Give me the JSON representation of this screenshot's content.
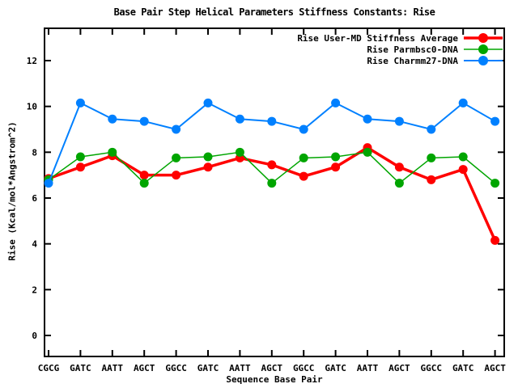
{
  "page": {
    "background": "#ffffff",
    "foreground": "#000000"
  },
  "chart_data": {
    "type": "line",
    "title": "Base Pair Step Helical Parameters Stiffness Constants: Rise",
    "xlabel": "Sequence Base Pair",
    "ylabel": "Rise (Kcal/mol*Angstrom^2)",
    "categories": [
      "CGCG",
      "GATC",
      "AATT",
      "AGCT",
      "GGCC",
      "GATC",
      "AATT",
      "AGCT",
      "GGCC",
      "GATC",
      "AATT",
      "AGCT",
      "GGCC",
      "GATC",
      "AGCT"
    ],
    "yticks": [
      0,
      2,
      4,
      6,
      8,
      10,
      12
    ],
    "ylim": [
      -0.9,
      13.4
    ],
    "grid": false,
    "legend": {
      "position": "top-right-inside"
    },
    "series": [
      {
        "name": "Rise User-MD Stiffness Average",
        "color": "#ff0000",
        "line_width": 3.5,
        "marker": "filled-circle",
        "values": [
          6.85,
          7.35,
          7.85,
          7.0,
          7.0,
          7.35,
          7.75,
          7.45,
          6.95,
          7.35,
          8.2,
          7.35,
          6.8,
          7.25,
          4.15
        ]
      },
      {
        "name": "Rise Parmbsc0-DNA",
        "color": "#00a500",
        "line_width": 1.5,
        "marker": "filled-circle",
        "values": [
          6.8,
          7.8,
          8.0,
          6.65,
          7.75,
          7.8,
          8.0,
          6.65,
          7.75,
          7.8,
          8.0,
          6.65,
          7.75,
          7.8,
          6.65
        ]
      },
      {
        "name": "Rise Charmm27-DNA",
        "color": "#0080ff",
        "line_width": 2,
        "marker": "filled-circle",
        "values": [
          6.65,
          10.15,
          9.45,
          9.35,
          9.0,
          10.15,
          9.45,
          9.35,
          9.0,
          10.15,
          9.45,
          9.35,
          9.0,
          10.15,
          9.35
        ]
      }
    ],
    "axis_color": "#000000",
    "text_color": "#000000"
  }
}
